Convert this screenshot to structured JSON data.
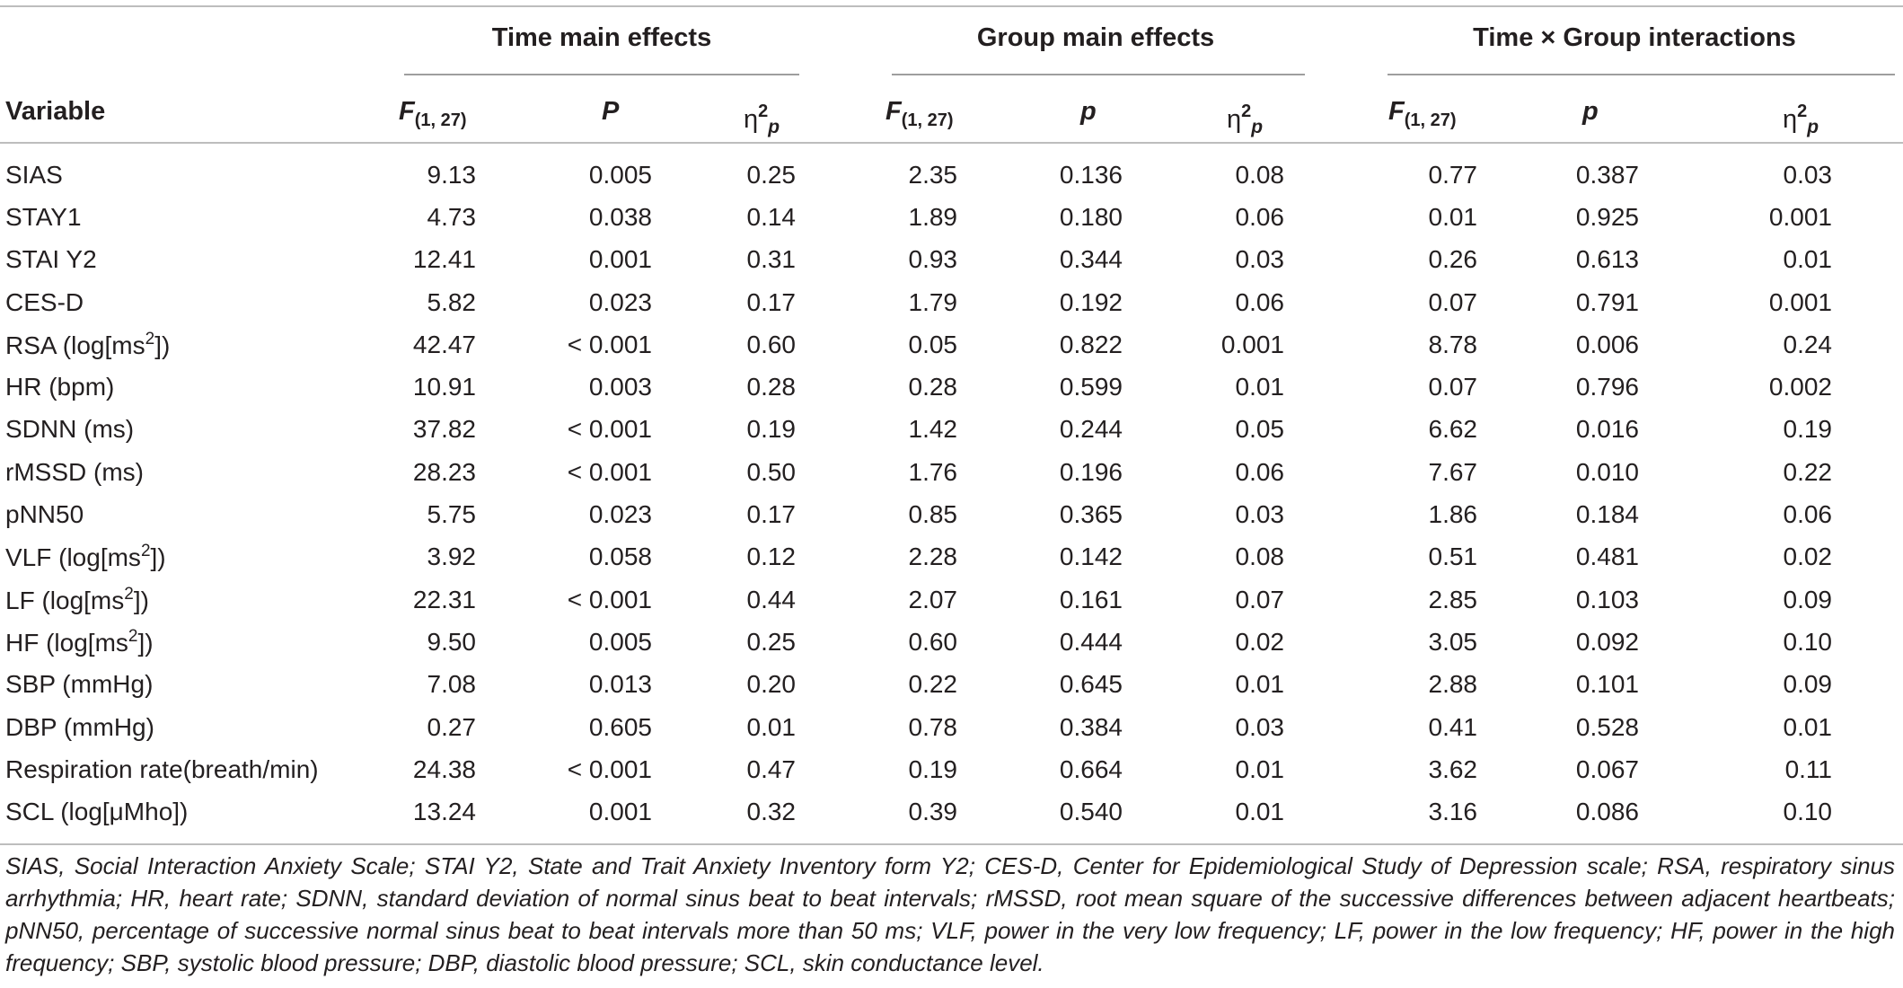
{
  "groups": {
    "time": "Time main effects",
    "group": "Group main effects",
    "interaction": "Time × Group interactions"
  },
  "headers": {
    "variable": "Variable",
    "F": "F",
    "df": "(1, 27)",
    "p_upper": "P",
    "p_lower": "p",
    "eta": "η",
    "eta_sup": "2",
    "eta_sub": "p"
  },
  "rows": [
    {
      "var": "SIAS",
      "t_f": "9.13",
      "t_p": "0.005",
      "t_eta": "0.25",
      "g_f": "2.35",
      "g_p": "0.136",
      "g_eta": "0.08",
      "i_f": "0.77",
      "i_p": "0.387",
      "i_eta": "0.03"
    },
    {
      "var": "STAY1",
      "t_f": "4.73",
      "t_p": "0.038",
      "t_eta": "0.14",
      "g_f": "1.89",
      "g_p": "0.180",
      "g_eta": "0.06",
      "i_f": "0.01",
      "i_p": "0.925",
      "i_eta": "0.001"
    },
    {
      "var": "STAI Y2",
      "t_f": "12.41",
      "t_p": "0.001",
      "t_eta": "0.31",
      "g_f": "0.93",
      "g_p": "0.344",
      "g_eta": "0.03",
      "i_f": "0.26",
      "i_p": "0.613",
      "i_eta": "0.01"
    },
    {
      "var": "CES-D",
      "t_f": "5.82",
      "t_p": "0.023",
      "t_eta": "0.17",
      "g_f": "1.79",
      "g_p": "0.192",
      "g_eta": "0.06",
      "i_f": "0.07",
      "i_p": "0.791",
      "i_eta": "0.001"
    },
    {
      "var": "RSA (log[ms",
      "var_sup": "2",
      "var_end": "])",
      "t_f": "42.47",
      "t_p": "< 0.001",
      "t_eta": "0.60",
      "g_f": "0.05",
      "g_p": "0.822",
      "g_eta": "0.001",
      "i_f": "8.78",
      "i_p": "0.006",
      "i_eta": "0.24"
    },
    {
      "var": "HR (bpm)",
      "t_f": "10.91",
      "t_p": "0.003",
      "t_eta": "0.28",
      "g_f": "0.28",
      "g_p": "0.599",
      "g_eta": "0.01",
      "i_f": "0.07",
      "i_p": "0.796",
      "i_eta": "0.002"
    },
    {
      "var": "SDNN (ms)",
      "t_f": "37.82",
      "t_p": "< 0.001",
      "t_eta": "0.19",
      "g_f": "1.42",
      "g_p": "0.244",
      "g_eta": "0.05",
      "i_f": "6.62",
      "i_p": "0.016",
      "i_eta": "0.19"
    },
    {
      "var": "rMSSD (ms)",
      "t_f": "28.23",
      "t_p": "< 0.001",
      "t_eta": "0.50",
      "g_f": "1.76",
      "g_p": "0.196",
      "g_eta": "0.06",
      "i_f": "7.67",
      "i_p": "0.010",
      "i_eta": "0.22"
    },
    {
      "var": "pNN50",
      "t_f": "5.75",
      "t_p": "0.023",
      "t_eta": "0.17",
      "g_f": "0.85",
      "g_p": "0.365",
      "g_eta": "0.03",
      "i_f": "1.86",
      "i_p": "0.184",
      "i_eta": "0.06"
    },
    {
      "var": "VLF (log[ms",
      "var_sup": "2",
      "var_end": "])",
      "t_f": "3.92",
      "t_p": "0.058",
      "t_eta": "0.12",
      "g_f": "2.28",
      "g_p": "0.142",
      "g_eta": "0.08",
      "i_f": "0.51",
      "i_p": "0.481",
      "i_eta": "0.02"
    },
    {
      "var": "LF (log[ms",
      "var_sup": "2",
      "var_end": "])",
      "t_f": "22.31",
      "t_p": "< 0.001",
      "t_eta": "0.44",
      "g_f": "2.07",
      "g_p": "0.161",
      "g_eta": "0.07",
      "i_f": "2.85",
      "i_p": "0.103",
      "i_eta": "0.09"
    },
    {
      "var": "HF (log[ms",
      "var_sup": "2",
      "var_end": "])",
      "t_f": "9.50",
      "t_p": "0.005",
      "t_eta": "0.25",
      "g_f": "0.60",
      "g_p": "0.444",
      "g_eta": "0.02",
      "i_f": "3.05",
      "i_p": "0.092",
      "i_eta": "0.10"
    },
    {
      "var": "SBP (mmHg)",
      "t_f": "7.08",
      "t_p": "0.013",
      "t_eta": "0.20",
      "g_f": "0.22",
      "g_p": "0.645",
      "g_eta": "0.01",
      "i_f": "2.88",
      "i_p": "0.101",
      "i_eta": "0.09"
    },
    {
      "var": "DBP (mmHg)",
      "t_f": "0.27",
      "t_p": "0.605",
      "t_eta": "0.01",
      "g_f": "0.78",
      "g_p": "0.384",
      "g_eta": "0.03",
      "i_f": "0.41",
      "i_p": "0.528",
      "i_eta": "0.01"
    },
    {
      "var": "Respiration rate(breath/min)",
      "t_f": "24.38",
      "t_p": "< 0.001",
      "t_eta": "0.47",
      "g_f": "0.19",
      "g_p": "0.664",
      "g_eta": "0.01",
      "i_f": "3.62",
      "i_p": "0.067",
      "i_eta": "0.11"
    },
    {
      "var": "SCL (log[μMho])",
      "t_f": "13.24",
      "t_p": "0.001",
      "t_eta": "0.32",
      "g_f": "0.39",
      "g_p": "0.540",
      "g_eta": "0.01",
      "i_f": "3.16",
      "i_p": "0.086",
      "i_eta": "0.10"
    }
  ],
  "footnote": "SIAS, Social Interaction Anxiety Scale; STAI Y2, State and Trait Anxiety Inventory form Y2; CES-D, Center for Epidemiological Study of Depression scale; RSA, respiratory sinus arrhythmia; HR, heart rate; SDNN, standard deviation of normal sinus beat to beat intervals; rMSSD, root mean square of the successive differences between adjacent heartbeats; pNN50, percentage of successive normal sinus beat to beat intervals more than 50 ms; VLF, power in the very low frequency; LF, power in the low frequency; HF, power in the high frequency; SBP, systolic blood pressure; DBP, diastolic blood pressure; SCL, skin conductance level."
}
